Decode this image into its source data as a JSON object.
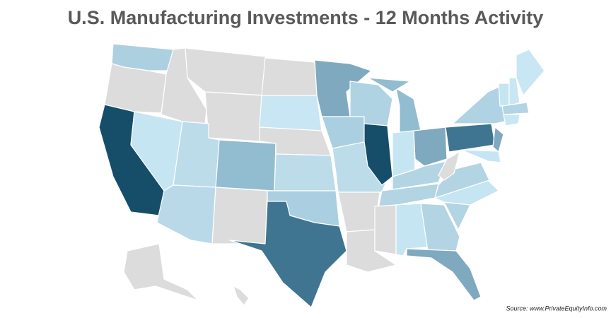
{
  "title": "U.S. Manufacturing Investments - 12 Months Activity",
  "source": "Source: www.PrivateEquityInfo.com"
}
